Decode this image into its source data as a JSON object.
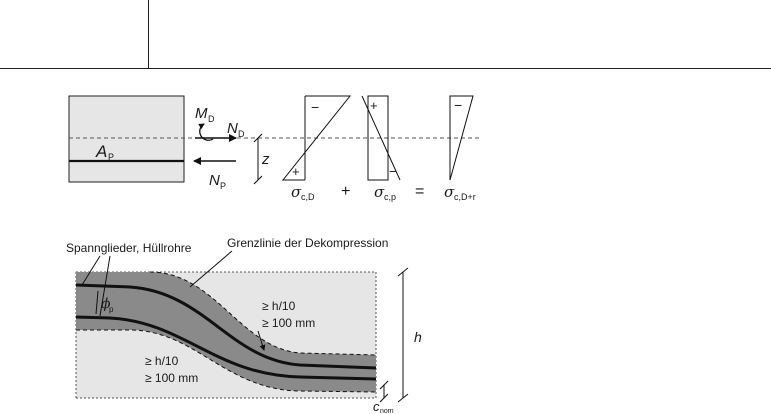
{
  "top_diagram": {
    "section_label": "A",
    "section_label_sub": "P",
    "moment_label": "M",
    "moment_sub": "D",
    "normal_force_label": "N",
    "normal_force_sub": "D",
    "prestress_force_label": "N",
    "prestress_force_sub": "P",
    "lever_arm_label": "z",
    "stress_d_symbol": "σ",
    "stress_d_sub": "c,D",
    "stress_p_symbol": "σ",
    "stress_p_sub": "c,p",
    "stress_sum_symbol": "σ",
    "stress_sum_sub": "c,D+r",
    "plus_op": "+",
    "equals_op": "=",
    "sign_minus": "−",
    "sign_plus": "+"
  },
  "bottom_diagram": {
    "tendons_label": "Spannglieder, Hüllrohre",
    "decompression_label": "Grenzlinie der Dekompression",
    "phi_symbol": "ϕ",
    "phi_sub": "p",
    "right_dim_line1": "≥ h/10",
    "right_dim_line2": "≥ 100 mm",
    "left_dim_line1": "≥ h/10",
    "left_dim_line2": "≥ 100 mm",
    "height_label": "h",
    "cover_label": "c",
    "cover_sub": "nom"
  }
}
